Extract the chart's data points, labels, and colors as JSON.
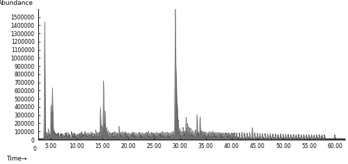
{
  "title": "",
  "xlabel": "Time→",
  "ylabel": "Abundance",
  "xlim": [
    2.5,
    62.0
  ],
  "ylim": [
    0,
    1600000
  ],
  "xticks": [
    5.0,
    10.0,
    15.0,
    20.0,
    25.0,
    30.0,
    35.0,
    40.0,
    45.0,
    50.0,
    55.0,
    60.0
  ],
  "yticks": [
    0,
    100000,
    200000,
    300000,
    400000,
    500000,
    600000,
    700000,
    800000,
    900000,
    1000000,
    1100000,
    1200000,
    1300000,
    1400000,
    1500000
  ],
  "line_color": "#555555",
  "bg_color": "#ffffff",
  "peaks": [
    [
      3.8,
      1430000
    ],
    [
      4.2,
      80000
    ],
    [
      4.5,
      120000
    ],
    [
      4.7,
      55000
    ],
    [
      5.0,
      320000
    ],
    [
      5.1,
      170000
    ],
    [
      5.3,
      610000
    ],
    [
      5.5,
      100000
    ],
    [
      5.7,
      80000
    ],
    [
      5.9,
      60000
    ],
    [
      6.1,
      55000
    ],
    [
      6.3,
      60000
    ],
    [
      6.5,
      70000
    ],
    [
      6.8,
      50000
    ],
    [
      7.0,
      60000
    ],
    [
      7.2,
      55000
    ],
    [
      7.5,
      50000
    ],
    [
      7.8,
      70000
    ],
    [
      8.0,
      65000
    ],
    [
      8.3,
      80000
    ],
    [
      8.6,
      55000
    ],
    [
      9.0,
      90000
    ],
    [
      9.3,
      60000
    ],
    [
      9.6,
      70000
    ],
    [
      9.9,
      55000
    ],
    [
      10.2,
      60000
    ],
    [
      10.5,
      65000
    ],
    [
      10.8,
      70000
    ],
    [
      11.0,
      80000
    ],
    [
      11.3,
      60000
    ],
    [
      11.6,
      90000
    ],
    [
      11.9,
      70000
    ],
    [
      12.2,
      75000
    ],
    [
      12.5,
      60000
    ],
    [
      12.8,
      80000
    ],
    [
      13.1,
      70000
    ],
    [
      13.4,
      65000
    ],
    [
      13.7,
      110000
    ],
    [
      14.0,
      75000
    ],
    [
      14.3,
      80000
    ],
    [
      14.6,
      390000
    ],
    [
      14.9,
      160000
    ],
    [
      15.2,
      710000
    ],
    [
      15.5,
      340000
    ],
    [
      15.8,
      140000
    ],
    [
      16.1,
      100000
    ],
    [
      16.4,
      80000
    ],
    [
      16.7,
      70000
    ],
    [
      17.0,
      75000
    ],
    [
      17.3,
      90000
    ],
    [
      17.6,
      80000
    ],
    [
      17.9,
      70000
    ],
    [
      18.2,
      150000
    ],
    [
      18.5,
      80000
    ],
    [
      18.8,
      90000
    ],
    [
      19.1,
      75000
    ],
    [
      19.4,
      85000
    ],
    [
      19.7,
      70000
    ],
    [
      20.0,
      75000
    ],
    [
      20.3,
      65000
    ],
    [
      20.6,
      70000
    ],
    [
      20.9,
      80000
    ],
    [
      21.2,
      75000
    ],
    [
      21.5,
      70000
    ],
    [
      21.8,
      65000
    ],
    [
      22.1,
      80000
    ],
    [
      22.4,
      70000
    ],
    [
      22.7,
      75000
    ],
    [
      23.0,
      65000
    ],
    [
      23.3,
      70000
    ],
    [
      23.6,
      80000
    ],
    [
      23.9,
      90000
    ],
    [
      24.2,
      70000
    ],
    [
      24.5,
      80000
    ],
    [
      24.8,
      75000
    ],
    [
      25.1,
      70000
    ],
    [
      25.4,
      80000
    ],
    [
      25.7,
      75000
    ],
    [
      26.0,
      70000
    ],
    [
      26.3,
      80000
    ],
    [
      26.6,
      90000
    ],
    [
      26.9,
      80000
    ],
    [
      27.2,
      75000
    ],
    [
      27.5,
      80000
    ],
    [
      27.8,
      70000
    ],
    [
      28.1,
      75000
    ],
    [
      28.4,
      80000
    ],
    [
      28.7,
      90000
    ],
    [
      29.0,
      130000
    ],
    [
      29.1,
      1560000
    ],
    [
      29.3,
      690000
    ],
    [
      29.5,
      390000
    ],
    [
      29.7,
      200000
    ],
    [
      30.0,
      120000
    ],
    [
      30.3,
      90000
    ],
    [
      30.6,
      140000
    ],
    [
      30.9,
      95000
    ],
    [
      31.2,
      270000
    ],
    [
      31.5,
      190000
    ],
    [
      31.8,
      140000
    ],
    [
      32.1,
      130000
    ],
    [
      32.4,
      100000
    ],
    [
      32.7,
      90000
    ],
    [
      33.0,
      110000
    ],
    [
      33.3,
      295000
    ],
    [
      33.6,
      80000
    ],
    [
      33.9,
      270000
    ],
    [
      34.2,
      100000
    ],
    [
      34.5,
      90000
    ],
    [
      34.8,
      85000
    ],
    [
      35.1,
      80000
    ],
    [
      35.5,
      80000
    ],
    [
      35.8,
      90000
    ],
    [
      36.1,
      80000
    ],
    [
      36.4,
      90000
    ],
    [
      36.7,
      75000
    ],
    [
      37.0,
      80000
    ],
    [
      37.3,
      75000
    ],
    [
      37.6,
      80000
    ],
    [
      37.9,
      70000
    ],
    [
      38.2,
      75000
    ],
    [
      38.5,
      70000
    ],
    [
      38.8,
      75000
    ],
    [
      39.1,
      70000
    ],
    [
      39.4,
      75000
    ],
    [
      39.7,
      70000
    ],
    [
      40.0,
      75000
    ],
    [
      40.3,
      70000
    ],
    [
      40.6,
      75000
    ],
    [
      41.0,
      70000
    ],
    [
      41.5,
      75000
    ],
    [
      42.0,
      80000
    ],
    [
      42.5,
      75000
    ],
    [
      43.0,
      70000
    ],
    [
      43.5,
      75000
    ],
    [
      44.0,
      140000
    ],
    [
      44.5,
      75000
    ],
    [
      45.0,
      70000
    ],
    [
      45.5,
      65000
    ],
    [
      46.0,
      60000
    ],
    [
      46.5,
      65000
    ],
    [
      47.0,
      60000
    ],
    [
      47.5,
      65000
    ],
    [
      48.0,
      60000
    ],
    [
      48.5,
      60000
    ],
    [
      49.0,
      55000
    ],
    [
      49.5,
      60000
    ],
    [
      50.0,
      55000
    ],
    [
      50.5,
      60000
    ],
    [
      51.0,
      55000
    ],
    [
      51.5,
      50000
    ],
    [
      52.0,
      55000
    ],
    [
      52.5,
      50000
    ],
    [
      53.0,
      55000
    ],
    [
      53.5,
      50000
    ],
    [
      54.0,
      55000
    ],
    [
      54.5,
      50000
    ],
    [
      55.0,
      50000
    ],
    [
      55.5,
      50000
    ],
    [
      56.0,
      50000
    ],
    [
      56.5,
      50000
    ],
    [
      57.0,
      50000
    ],
    [
      57.5,
      50000
    ],
    [
      58.0,
      50000
    ],
    [
      60.0,
      50000
    ]
  ]
}
